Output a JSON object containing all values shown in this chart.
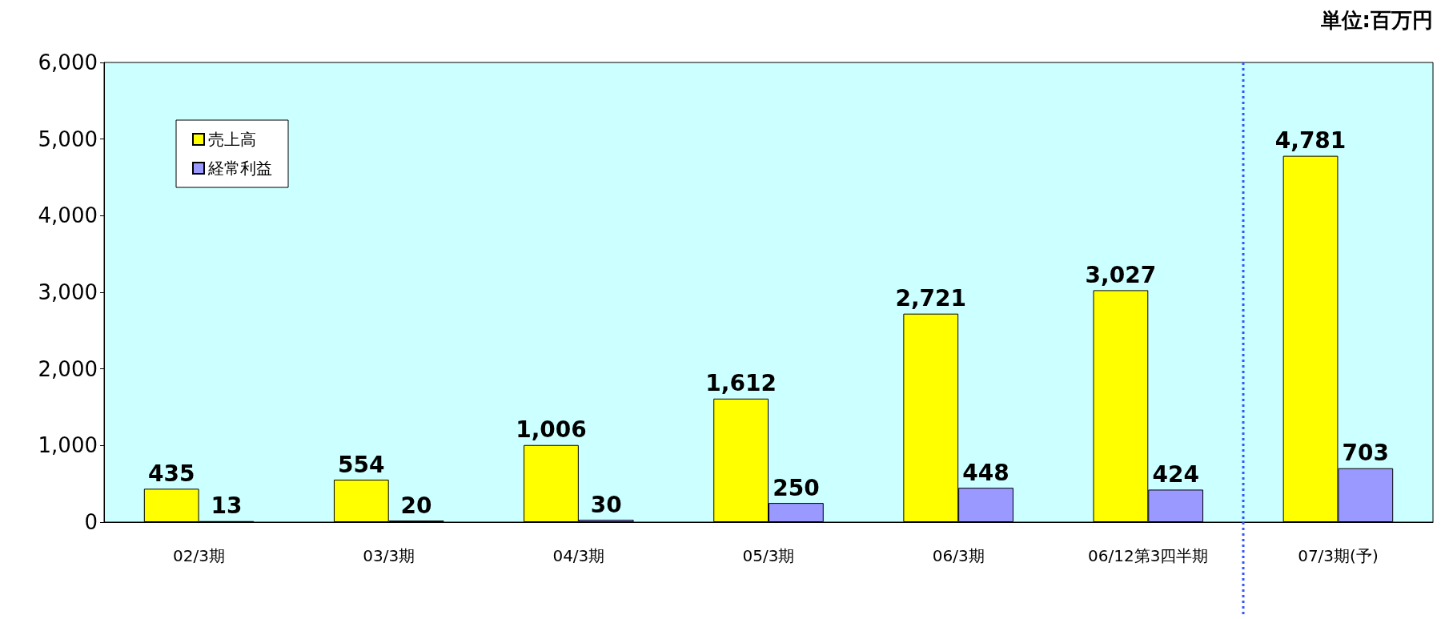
{
  "chart_data": {
    "type": "bar",
    "categories": [
      "02/3期",
      "03/3期",
      "04/3期",
      "05/3期",
      "06/3期",
      "06/12第3四半期",
      "07/3期(予)"
    ],
    "series": [
      {
        "name": "売上高",
        "color": "#ffff00",
        "values": [
          435,
          554,
          1006,
          1612,
          2721,
          3027,
          4781
        ],
        "value_labels": [
          "435",
          "554",
          "1,006",
          "1,612",
          "2,721",
          "3,027",
          "4,781"
        ]
      },
      {
        "name": "経常利益",
        "color": "#9999ff",
        "values": [
          13,
          20,
          30,
          250,
          448,
          424,
          703
        ],
        "value_labels": [
          "13",
          "20",
          "30",
          "250",
          "448",
          "424",
          "703"
        ]
      }
    ],
    "ylim": [
      0,
      6000
    ],
    "yticks": [
      0,
      {
        "value": 1000,
        "label": "1,000"
      },
      {
        "value": 2000,
        "label": "2,000"
      },
      {
        "value": 3000,
        "label": "3,000"
      },
      {
        "value": 4000,
        "label": "4,000"
      },
      {
        "value": 5000,
        "label": "5,000"
      },
      {
        "value": 6000,
        "label": "6,000"
      }
    ],
    "grid": false,
    "legend": "top left",
    "annotations": [
      "単位:百万円"
    ]
  }
}
